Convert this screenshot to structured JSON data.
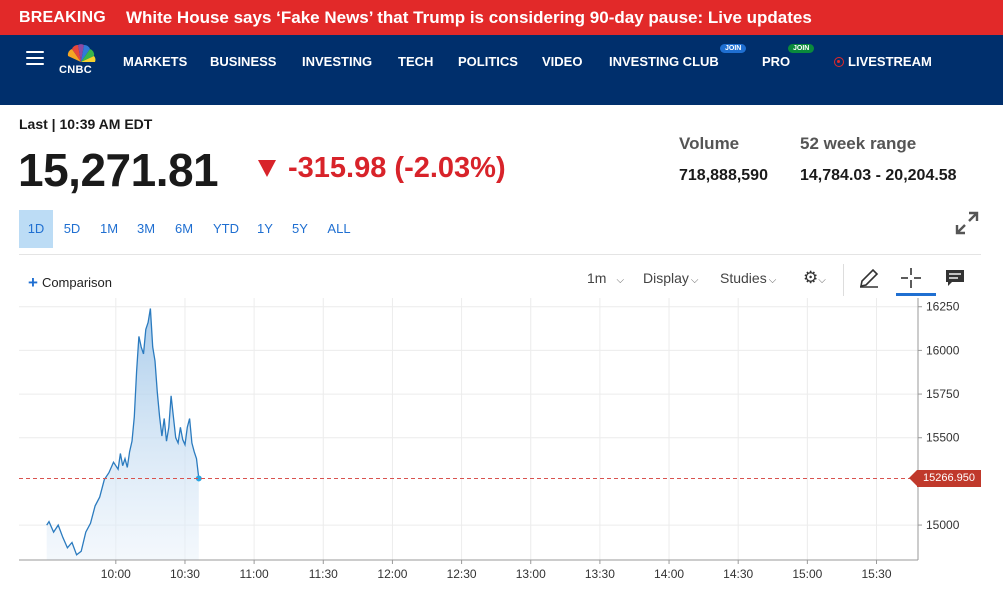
{
  "breaking": {
    "tag": "BREAKING",
    "headline": "White House says ‘Fake News’ that Trump is considering 90-day pause: Live updates"
  },
  "nav": {
    "logo_text": "CNBC",
    "items": [
      "MARKETS",
      "BUSINESS",
      "INVESTING",
      "TECH",
      "POLITICS",
      "VIDEO",
      "INVESTING CLUB",
      "PRO",
      "LIVESTREAM"
    ],
    "join_badge": "JOIN"
  },
  "quote": {
    "last_label": "Last | 10:39 AM EDT",
    "price": "15,271.81",
    "change": "-315.98 (-2.03%)",
    "volume_label": "Volume",
    "volume": "718,888,590",
    "range_label": "52 week range",
    "range": "14,784.03 - 20,204.58",
    "down_color": "#d8232a"
  },
  "ranges": {
    "options": [
      "1D",
      "5D",
      "1M",
      "3M",
      "6M",
      "YTD",
      "1Y",
      "5Y",
      "ALL"
    ],
    "selected": "1D"
  },
  "toolbar": {
    "comparison": "Comparison",
    "interval": "1m",
    "display": "Display",
    "studies": "Studies"
  },
  "chart_data": {
    "type": "area",
    "x_ticks": [
      "10:00",
      "10:30",
      "11:00",
      "11:30",
      "12:00",
      "12:30",
      "13:00",
      "13:30",
      "14:00",
      "14:30",
      "15:00",
      "15:30"
    ],
    "y_ticks": [
      16250,
      16000,
      15750,
      15500,
      15000
    ],
    "ylim": [
      14800,
      16300
    ],
    "last_price_label": "15266.950",
    "last_price": 15266.95,
    "line_color": "#2b7bbf",
    "series": [
      {
        "x": [
          "09:30",
          "09:31",
          "09:33",
          "09:35",
          "09:37",
          "09:39",
          "09:41",
          "09:43",
          "09:45",
          "09:47",
          "09:49",
          "09:51",
          "09:53",
          "09:55",
          "09:57",
          "09:59",
          "10:01",
          "10:02",
          "10:03",
          "10:04",
          "10:05",
          "10:06",
          "10:07",
          "10:08",
          "10:09",
          "10:10",
          "10:11",
          "10:12",
          "10:13",
          "10:14",
          "10:15",
          "10:16",
          "10:17",
          "10:18",
          "10:19",
          "10:20",
          "10:21",
          "10:22",
          "10:23",
          "10:24",
          "10:25",
          "10:26",
          "10:27",
          "10:28",
          "10:29",
          "10:30",
          "10:31",
          "10:32",
          "10:33",
          "10:34",
          "10:35",
          "10:36"
        ],
        "values": [
          15000,
          15020,
          14960,
          15000,
          14930,
          14870,
          14900,
          14830,
          14850,
          14960,
          15010,
          15110,
          15160,
          15260,
          15300,
          15360,
          15320,
          15410,
          15340,
          15380,
          15330,
          15420,
          15480,
          15620,
          15880,
          16080,
          16020,
          15980,
          16120,
          16160,
          16240,
          16020,
          15940,
          15760,
          15620,
          15510,
          15610,
          15480,
          15560,
          15740,
          15620,
          15500,
          15470,
          15560,
          15490,
          15460,
          15560,
          15610,
          15470,
          15420,
          15380,
          15266.95
        ]
      }
    ]
  }
}
